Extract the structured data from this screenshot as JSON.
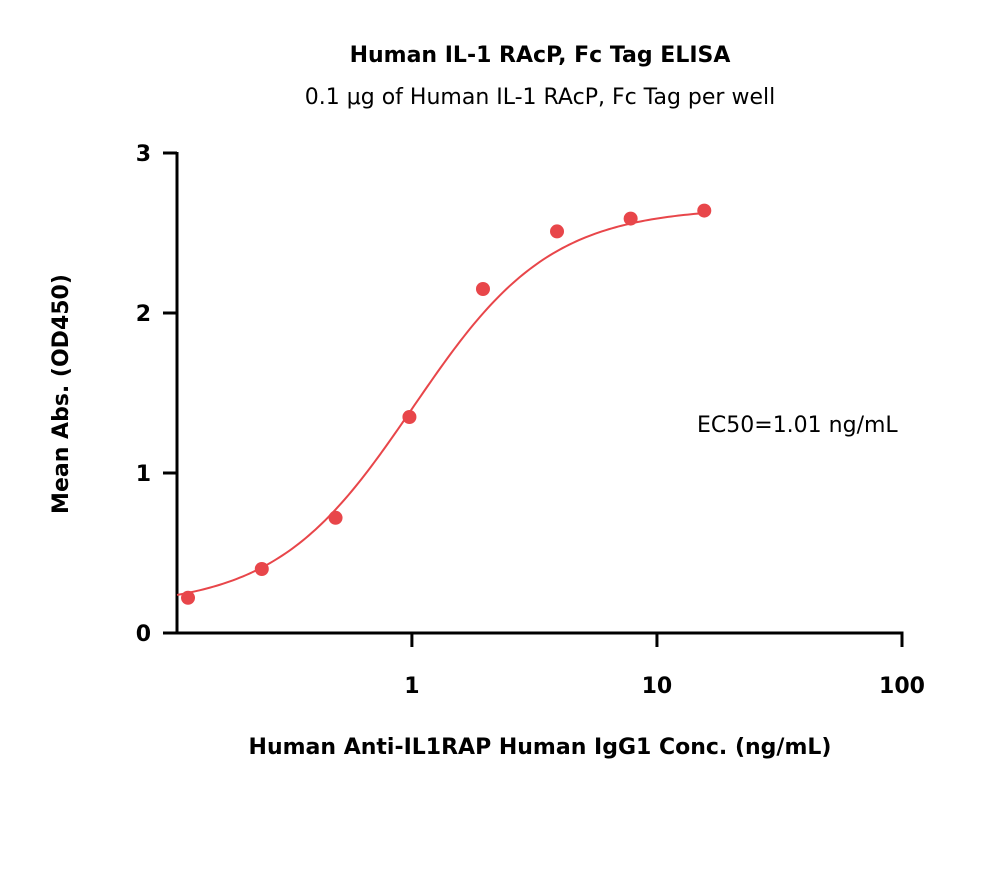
{
  "chart_data": {
    "type": "scatter",
    "title": "Human IL-1 RAcP, Fc Tag ELISA",
    "subtitle": "0.1 μg of Human IL-1 RAcP, Fc Tag per well",
    "xlabel": "Human Anti-IL1RAP Human IgG1 Conc. (ng/mL)",
    "ylabel": "Mean Abs. (OD450)",
    "x_scale": "log",
    "xlim": [
      0.11,
      100
    ],
    "ylim": [
      0,
      3
    ],
    "x_ticks": [
      {
        "value": 1,
        "label": "1"
      },
      {
        "value": 10,
        "label": "10"
      },
      {
        "value": 100,
        "label": "100"
      }
    ],
    "y_ticks": [
      {
        "value": 0,
        "label": "0"
      },
      {
        "value": 1,
        "label": "1"
      },
      {
        "value": 2,
        "label": "2"
      },
      {
        "value": 3,
        "label": "3"
      }
    ],
    "grid": false,
    "points": [
      {
        "x": 0.122,
        "y": 0.22
      },
      {
        "x": 0.244,
        "y": 0.4
      },
      {
        "x": 0.488,
        "y": 0.72
      },
      {
        "x": 0.977,
        "y": 1.35
      },
      {
        "x": 1.95,
        "y": 2.15
      },
      {
        "x": 3.91,
        "y": 2.51
      },
      {
        "x": 7.81,
        "y": 2.59
      },
      {
        "x": 15.6,
        "y": 2.64
      }
    ],
    "fit": {
      "bottom": 0.16,
      "top": 2.66,
      "ec50": 1.01,
      "hill": 1.55,
      "x_range": [
        0.11,
        15.6
      ]
    },
    "annotation": "EC50=1.01 ng/mL",
    "color": "#e8464a"
  }
}
